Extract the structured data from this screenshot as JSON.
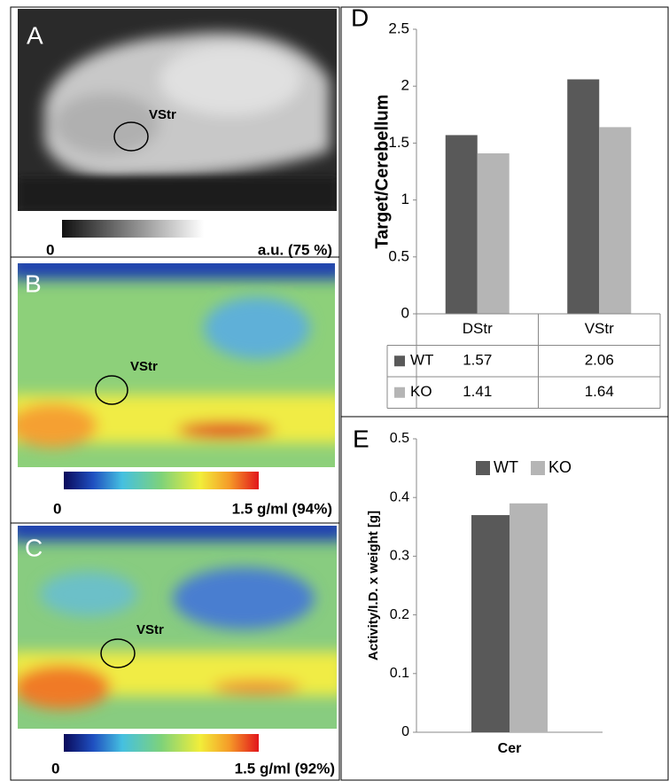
{
  "panels": [
    {
      "label": "A",
      "roi": "VStr",
      "scale_min": "0",
      "scale_max": "a.u. (75 %)"
    },
    {
      "label": "B",
      "roi": "VStr",
      "scale_min": "0",
      "scale_max": "1.5 g/ml (94%)"
    },
    {
      "label": "C",
      "roi": "VStr",
      "scale_min": "0",
      "scale_max": "1.5 g/ml (92%)"
    }
  ],
  "chart_data": [
    {
      "type": "bar",
      "panel": "D",
      "ylabel": "Target/Cerebellum",
      "categories": [
        "DStr",
        "VStr"
      ],
      "series": [
        {
          "name": "WT",
          "color": "#595959",
          "values": [
            1.57,
            2.06
          ]
        },
        {
          "name": "KO",
          "color": "#b5b5b5",
          "values": [
            1.41,
            1.64
          ]
        }
      ],
      "ylim": [
        0,
        2.5
      ],
      "yticks": [
        0,
        0.5,
        1,
        1.5,
        2,
        2.5
      ],
      "data_table": true
    },
    {
      "type": "bar",
      "panel": "E",
      "ylabel": "Activity/I.D. x weight [g]",
      "categories": [
        "Cer"
      ],
      "series": [
        {
          "name": "WT",
          "color": "#595959",
          "values": [
            0.37
          ]
        },
        {
          "name": "KO",
          "color": "#b5b5b5",
          "values": [
            0.39
          ]
        }
      ],
      "ylim": [
        0,
        0.5
      ],
      "yticks": [
        0,
        0.1,
        0.2,
        0.3,
        0.4,
        0.5
      ],
      "legend": "top"
    }
  ]
}
